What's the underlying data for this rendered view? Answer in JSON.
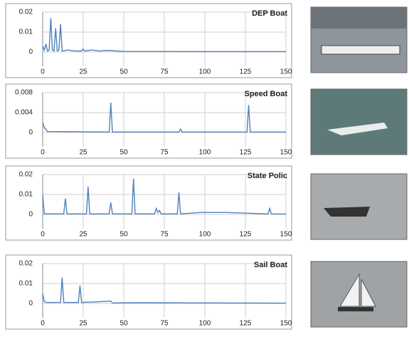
{
  "chart_data": [
    {
      "type": "line",
      "title": "DEP Boat",
      "color": "#4f81bd",
      "grid": true,
      "x": [
        0,
        1,
        2,
        3,
        4,
        5,
        6,
        7,
        8,
        9,
        10,
        11,
        12,
        15,
        20,
        24,
        25,
        26,
        30,
        35,
        40,
        50,
        100,
        150
      ],
      "values": [
        0.003,
        0.001,
        0.004,
        0.0005,
        0.001,
        0.017,
        0.001,
        0.0005,
        0.012,
        0.0005,
        0.001,
        0.014,
        0.0005,
        0.001,
        0.0005,
        0.0005,
        0.0015,
        0.0005,
        0.001,
        0.0005,
        0.0008,
        0.0003,
        0.0002,
        0.0002
      ],
      "xlim": [
        0,
        150
      ],
      "xticks": [
        0,
        25,
        50,
        75,
        100,
        125,
        150
      ],
      "ylim": [
        0,
        0.02
      ],
      "yticks": [
        0,
        0.01,
        0.02
      ]
    },
    {
      "type": "line",
      "title": "Speed Boat",
      "color": "#4f81bd",
      "grid": true,
      "x": [
        0,
        1,
        3,
        41,
        42,
        43,
        84,
        85,
        86,
        126,
        127,
        128,
        150
      ],
      "values": [
        0.002,
        0.001,
        0.0002,
        0.0001,
        0.006,
        0.0001,
        0.0001,
        0.0007,
        0.0001,
        0.0001,
        0.0055,
        0.0001,
        0.0001
      ],
      "xlim": [
        0,
        150
      ],
      "xticks": [
        0,
        25,
        50,
        75,
        100,
        125,
        150
      ],
      "ylim": [
        0,
        0.008
      ],
      "yticks": [
        0,
        0.004,
        0.008
      ]
    },
    {
      "type": "line",
      "title": "State Polic",
      "color": "#4f81bd",
      "grid": true,
      "x": [
        0,
        1,
        13,
        14,
        15,
        27,
        28,
        29,
        41,
        42,
        43,
        55,
        56,
        57,
        69,
        70,
        71,
        72,
        73,
        83,
        84,
        85,
        98,
        112,
        139,
        140,
        141,
        150
      ],
      "values": [
        0.01,
        0.0003,
        0.0003,
        0.008,
        0.0003,
        0.0003,
        0.014,
        0.0003,
        0.0003,
        0.006,
        0.0003,
        0.0003,
        0.018,
        0.0003,
        0.0003,
        0.003,
        0.001,
        0.002,
        0.0003,
        0.0003,
        0.011,
        0.0003,
        0.001,
        0.001,
        0.0003,
        0.003,
        0.0003,
        0.0002
      ],
      "xlim": [
        0,
        150
      ],
      "xticks": [
        0,
        25,
        50,
        75,
        100,
        125,
        150
      ],
      "ylim": [
        0,
        0.02
      ],
      "yticks": [
        0,
        0.01,
        0.02
      ]
    },
    {
      "type": "line",
      "title": "Sail Boat",
      "color": "#4f81bd",
      "grid": true,
      "x": [
        0,
        1,
        2,
        11,
        12,
        13,
        22,
        23,
        24,
        42,
        43,
        60,
        100,
        150
      ],
      "values": [
        0.005,
        0.001,
        0.0005,
        0.0005,
        0.013,
        0.0005,
        0.0005,
        0.009,
        0.0005,
        0.0012,
        0.0003,
        0.0004,
        0.0003,
        0.0002
      ],
      "xlim": [
        0,
        150
      ],
      "xticks": [
        0,
        25,
        50,
        75,
        100,
        125,
        150
      ],
      "ylim": [
        0,
        0.02
      ],
      "yticks": [
        0,
        0.01,
        0.02
      ]
    }
  ]
}
